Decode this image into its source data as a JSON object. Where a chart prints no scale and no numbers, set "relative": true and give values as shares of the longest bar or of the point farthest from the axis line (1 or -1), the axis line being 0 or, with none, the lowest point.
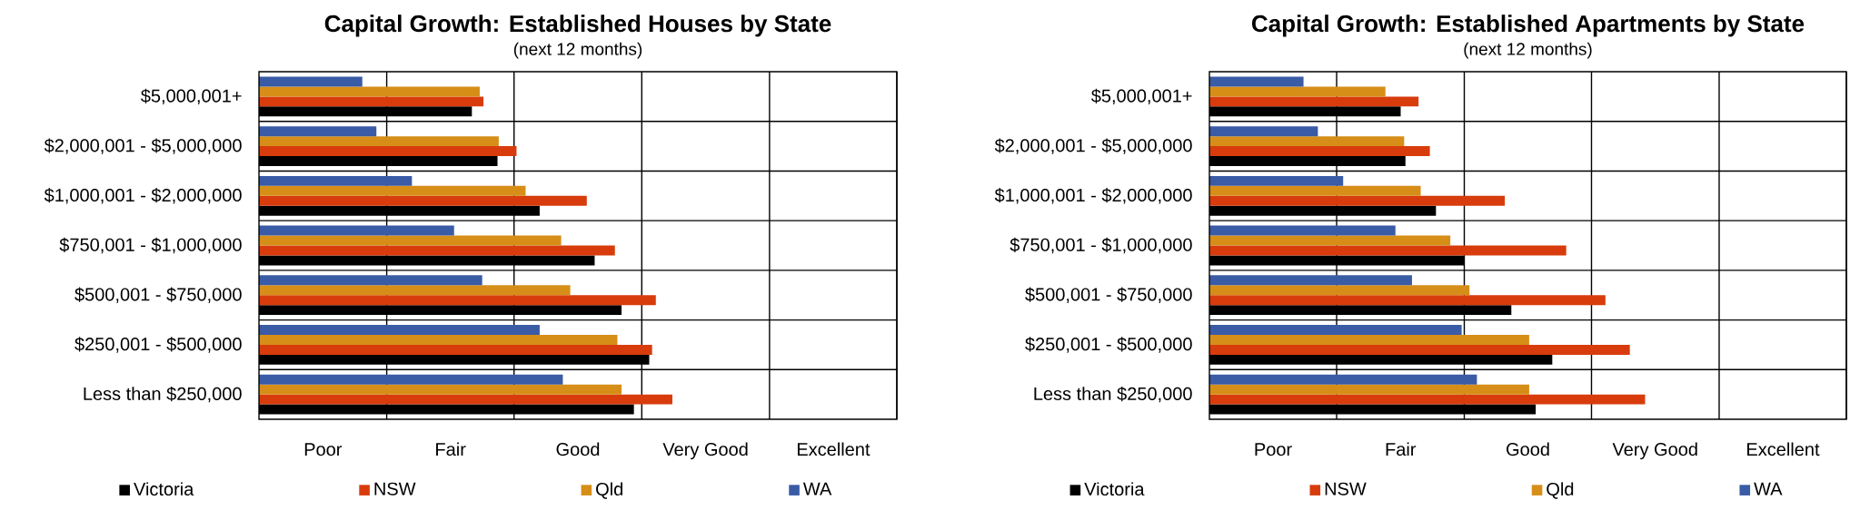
{
  "chart_data": [
    {
      "type": "bar",
      "orientation": "horizontal",
      "relative": true,
      "title": "Capital Growth: Established Houses by State",
      "subtitle": "(next 12 months)",
      "categories": [
        "$5,000,001+",
        "$2,000,001 - $5,000,000",
        "$1,000,001 - $2,000,000",
        "$750,001 - $1,000,000",
        "$500,001 - $750,000",
        "$250,001 - $500,000",
        "Less than $250,000"
      ],
      "series": [
        {
          "name": "Victoria",
          "color": "#000000",
          "values": [
            0.515,
            0.577,
            0.679,
            0.812,
            0.877,
            0.944,
            0.907
          ]
        },
        {
          "name": "NSW",
          "color": "#d83c0c",
          "values": [
            0.543,
            0.623,
            0.793,
            0.861,
            0.96,
            0.951,
            1
          ]
        },
        {
          "name": "Qld",
          "color": "#d68e18",
          "values": [
            0.534,
            0.58,
            0.645,
            0.731,
            0.753,
            0.867,
            0.877
          ]
        },
        {
          "name": "WA",
          "color": "#3a5ba5",
          "values": [
            0.25,
            0.284,
            0.37,
            0.472,
            0.54,
            0.679,
            0.735
          ]
        }
      ],
      "ref_lines": [
        {
          "axis": "x",
          "value": 0.309
        },
        {
          "axis": "x",
          "value": 0.617
        },
        {
          "axis": "x",
          "value": 0.926
        },
        {
          "axis": "x",
          "value": 1.235
        },
        {
          "axis": "x",
          "value": 1.543
        }
      ],
      "annotations": [
        "Poor",
        "Fair",
        "Good",
        "Very Good",
        "Excellent"
      ],
      "grid": "y",
      "legend": "bottom"
    },
    {
      "type": "bar",
      "orientation": "horizontal",
      "relative": true,
      "title": "Capital Growth: Established Apartments by State",
      "subtitle": "(next 12 months)",
      "categories": [
        "$5,000,001+",
        "$2,000,001 - $5,000,000",
        "$1,000,001 - $2,000,000",
        "$750,001 - $1,000,000",
        "$500,001 - $750,000",
        "$250,001 - $500,000",
        "Less than $250,000"
      ],
      "series": [
        {
          "name": "Victoria",
          "color": "#000000",
          "values": [
            0.439,
            0.45,
            0.52,
            0.585,
            0.693,
            0.787,
            0.749
          ]
        },
        {
          "name": "NSW",
          "color": "#d83c0c",
          "values": [
            0.48,
            0.506,
            0.678,
            0.819,
            0.909,
            0.965,
            1
          ]
        },
        {
          "name": "Qld",
          "color": "#d68e18",
          "values": [
            0.404,
            0.447,
            0.485,
            0.553,
            0.597,
            0.734,
            0.734
          ]
        },
        {
          "name": "WA",
          "color": "#3a5ba5",
          "values": [
            0.216,
            0.249,
            0.307,
            0.427,
            0.465,
            0.579,
            0.614
          ]
        }
      ],
      "ref_lines": [
        {
          "axis": "x",
          "value": 0.292
        },
        {
          "axis": "x",
          "value": 0.585
        },
        {
          "axis": "x",
          "value": 0.877
        },
        {
          "axis": "x",
          "value": 1.17
        },
        {
          "axis": "x",
          "value": 1.462
        }
      ],
      "annotations": [
        "Poor",
        "Fair",
        "Good",
        "Very Good",
        "Excellent"
      ],
      "grid": "y",
      "legend": "bottom"
    }
  ]
}
